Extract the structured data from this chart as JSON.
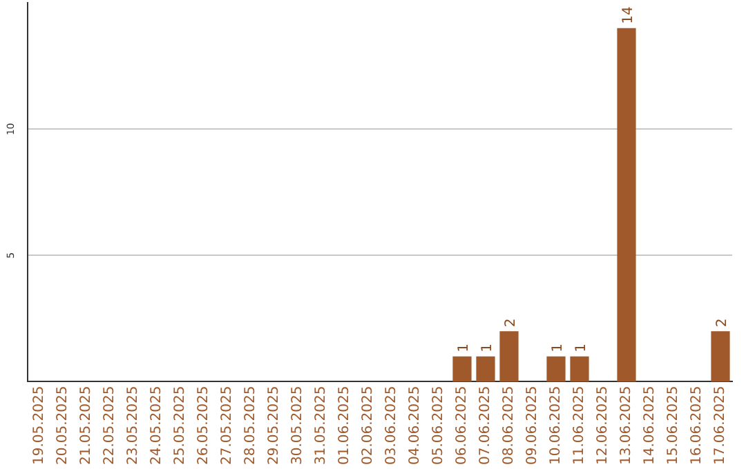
{
  "chart_data": {
    "type": "bar",
    "categories": [
      "19.05.2025",
      "20.05.2025",
      "21.05.2025",
      "22.05.2025",
      "23.05.2025",
      "24.05.2025",
      "25.05.2025",
      "26.05.2025",
      "27.05.2025",
      "28.05.2025",
      "29.05.2025",
      "30.05.2025",
      "31.05.2025",
      "01.06.2025",
      "02.06.2025",
      "03.06.2025",
      "04.06.2025",
      "05.06.2025",
      "06.06.2025",
      "07.06.2025",
      "08.06.2025",
      "09.06.2025",
      "10.06.2025",
      "11.06.2025",
      "12.06.2025",
      "13.06.2025",
      "14.06.2025",
      "15.06.2025",
      "16.06.2025",
      "17.06.2025"
    ],
    "values": [
      0,
      0,
      0,
      0,
      0,
      0,
      0,
      0,
      0,
      0,
      0,
      0,
      0,
      0,
      0,
      0,
      0,
      0,
      1,
      1,
      2,
      0,
      1,
      1,
      0,
      14,
      0,
      0,
      0,
      2
    ],
    "value_labels": [
      null,
      null,
      null,
      null,
      null,
      null,
      null,
      null,
      null,
      null,
      null,
      null,
      null,
      null,
      null,
      null,
      null,
      null,
      "1",
      "1",
      "2",
      null,
      "1",
      "1",
      null,
      "14",
      null,
      null,
      null,
      "2"
    ],
    "color": "#a0592a",
    "ylim": [
      0,
      15
    ],
    "yticks": [
      5,
      10
    ],
    "grid": "y",
    "legend": false
  }
}
